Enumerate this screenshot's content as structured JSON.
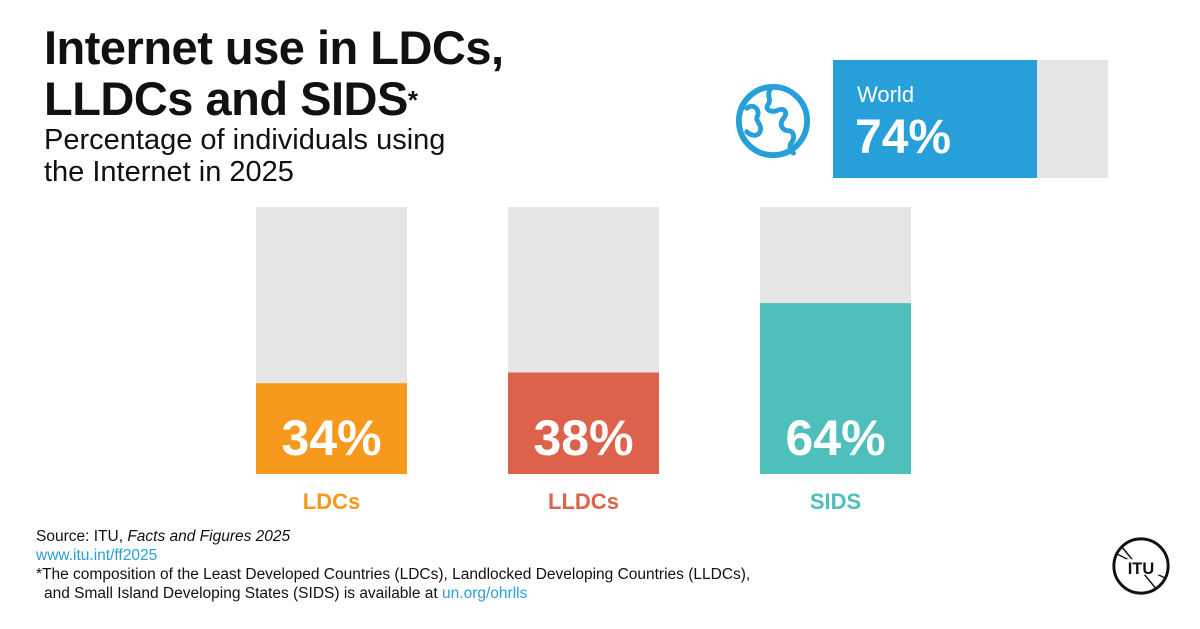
{
  "title": {
    "line1": "Internet use in LDCs,",
    "line2": "LLDCs and SIDS",
    "asterisk": "*"
  },
  "subtitle": {
    "line1": "Percentage of individuals using",
    "line2": "the Internet in 2025"
  },
  "world": {
    "label": "World",
    "value": 74,
    "value_label": "74%",
    "color": "#279fd9",
    "track_color": "#e5e5e5",
    "icon": "globe-icon"
  },
  "chart_data": {
    "type": "bar",
    "title": "Percentage of individuals using the Internet in 2025",
    "categories": [
      "LDCs",
      "LLDCs",
      "SIDS"
    ],
    "values": [
      34,
      38,
      64
    ],
    "value_labels": [
      "34%",
      "38%",
      "64%"
    ],
    "colors": [
      "#f7991c",
      "#dc624b",
      "#4fbfbb"
    ],
    "track_color": "#e5e5e5",
    "ylim": [
      0,
      100
    ],
    "grid": false,
    "legend": "none"
  },
  "footer": {
    "source_prefix": "Source: ITU, ",
    "source_title": "Facts and Figures 2025",
    "source_url": "www.itu.int/ff2025",
    "footnote_line1": "*The composition of the Least Developed Countries (LDCs), Landlocked Developing Countries (LLDCs),",
    "footnote_line2_prefix": "and Small Island Developing States (SIDS) is available at ",
    "footnote_link": "un.org/ohrlls"
  },
  "logo": {
    "text": "ITU",
    "icon": "itu-logo-icon"
  }
}
